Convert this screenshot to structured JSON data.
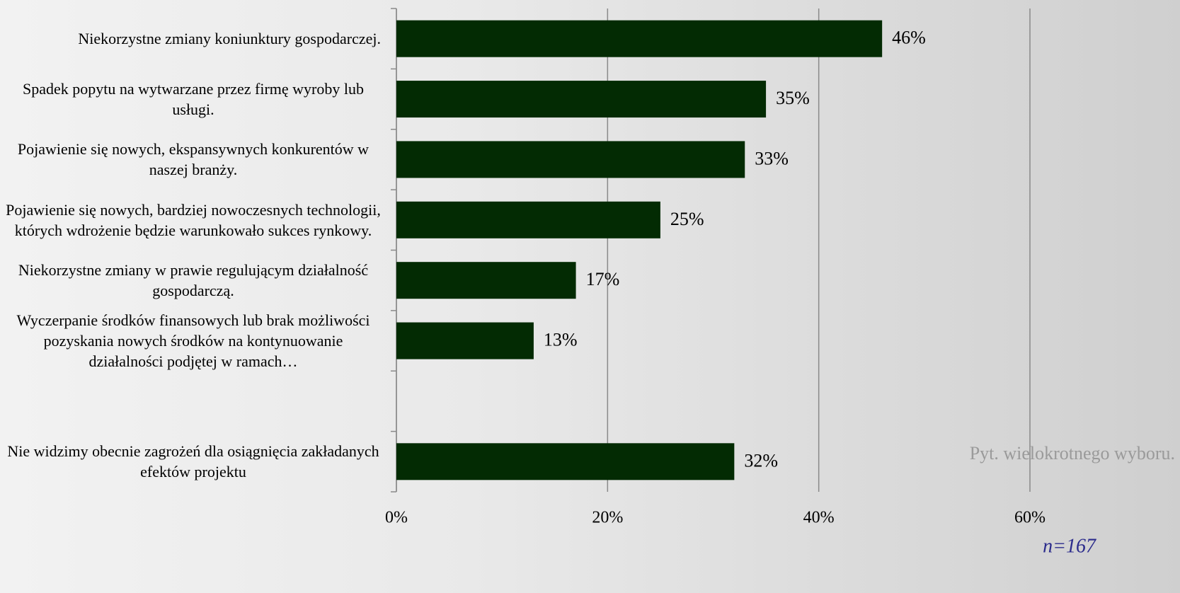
{
  "chart_data": {
    "type": "bar",
    "orientation": "horizontal",
    "categories": [
      "Niekorzystne zmiany koniunktury gospodarczej.",
      "Spadek popytu na wytwarzane przez firmę wyroby lub usługi.",
      "Pojawienie się nowych, ekspansywnych konkurentów w naszej branży.",
      "Pojawienie się nowych, bardziej nowoczesnych technologii, których wdrożenie będzie warunkowało sukces rynkowy.",
      "Niekorzystne zmiany w prawie regulującym działalność gospodarczą.",
      "Wyczerpanie środków finansowych lub brak możliwości pozyskania nowych środków na kontynuowanie działalności podjętej w ramach…",
      null,
      "Nie widzimy obecnie zagrożeń dla osiągnięcia zakładanych efektów projektu"
    ],
    "values": [
      46,
      35,
      33,
      25,
      17,
      13,
      null,
      32
    ],
    "value_labels": [
      "46%",
      "35%",
      "33%",
      "25%",
      "17%",
      "13%",
      null,
      "32%"
    ],
    "color": "#032b03",
    "xlim": [
      0,
      60
    ],
    "xticks": [
      {
        "value": 0,
        "label": "0%"
      },
      {
        "value": 20,
        "label": "20%"
      },
      {
        "value": 40,
        "label": "40%"
      },
      {
        "value": 60,
        "label": "60%"
      }
    ],
    "grid": true,
    "annotations": [
      "Pyt. wielokrotnego wyboru.",
      "n=167"
    ]
  }
}
